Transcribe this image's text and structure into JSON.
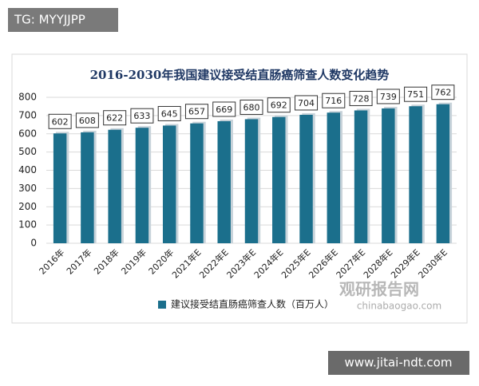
{
  "overlay": {
    "top_left": "TG: MYYJJPP",
    "bottom_right": "www.jitai-ndt.com"
  },
  "chart_data": {
    "type": "bar",
    "title": "2016-2030年我国建议接受结直肠癌筛查人数变化趋势",
    "categories": [
      "2016年",
      "2017年",
      "2018年",
      "2019年",
      "2020年",
      "2021年E",
      "2022年E",
      "2023年E",
      "2024年E",
      "2025年E",
      "2026年E",
      "2027年E",
      "2028年E",
      "2029年E",
      "2030年E"
    ],
    "series": [
      {
        "name": "建议接受结直肠癌筛查人数（百万人）",
        "color": "#1b6f8c",
        "values": [
          602,
          608,
          622,
          633,
          645,
          657,
          669,
          680,
          692,
          704,
          716,
          728,
          739,
          751,
          762
        ]
      }
    ],
    "ylim": [
      0,
      800
    ],
    "yticks": [
      0,
      100,
      200,
      300,
      400,
      500,
      600,
      700,
      800
    ],
    "grid": true,
    "legend": "bottom",
    "annotations": [
      "观研报告网",
      "chinabaogao.com"
    ]
  }
}
